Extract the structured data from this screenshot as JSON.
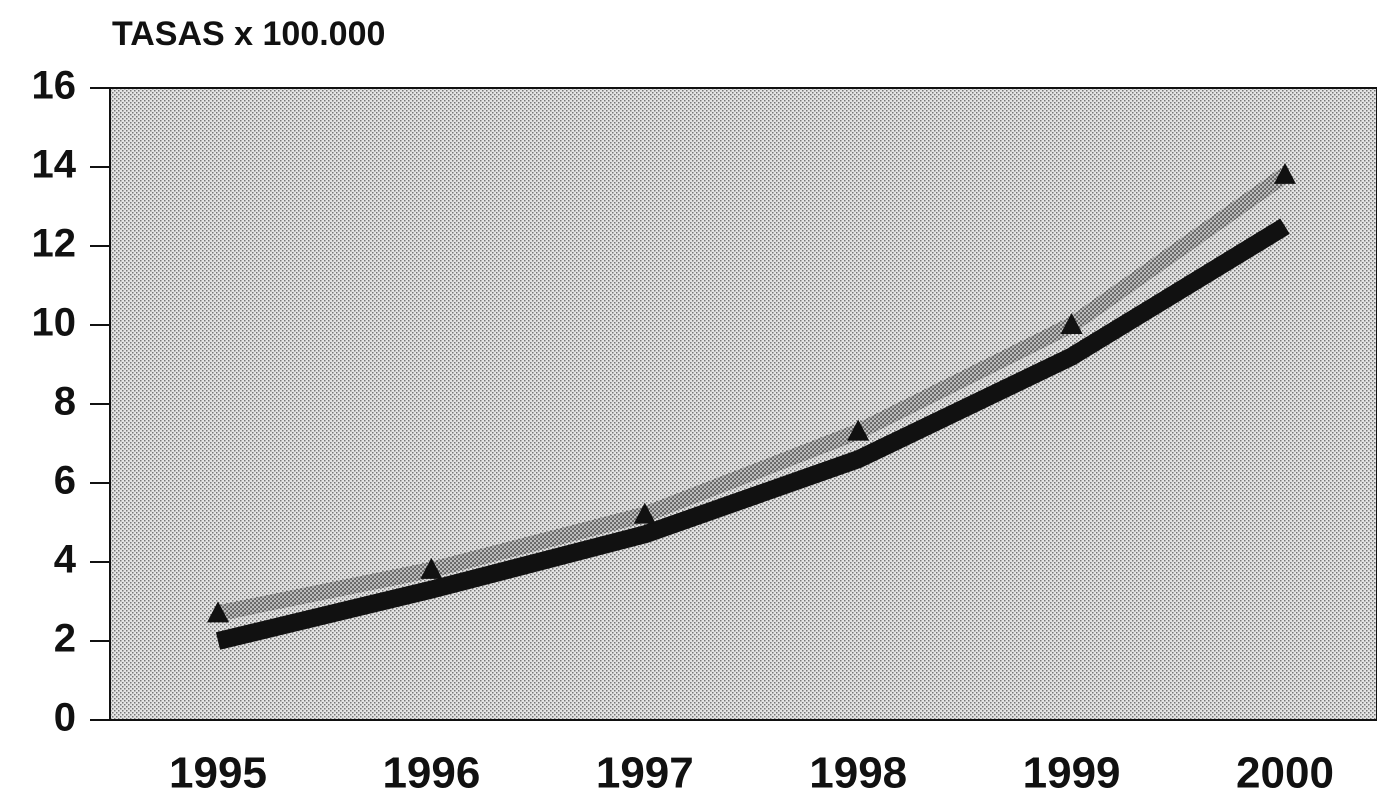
{
  "chart_data": {
    "type": "line",
    "title": "TASAS x 100.000",
    "categories": [
      "1995",
      "1996",
      "1997",
      "1998",
      "1999",
      "2000"
    ],
    "series": [
      {
        "color": "#9a9a9a",
        "marker": "triangle",
        "values": [
          2.7,
          3.8,
          5.2,
          7.3,
          10.0,
          13.8
        ]
      },
      {
        "color": "#111111",
        "values": [
          2.0,
          3.3,
          4.7,
          6.6,
          9.2,
          12.5
        ]
      }
    ],
    "ylim": [
      0,
      16
    ],
    "yticks": [
      0,
      2,
      4,
      6,
      8,
      10,
      12,
      14,
      16
    ]
  }
}
